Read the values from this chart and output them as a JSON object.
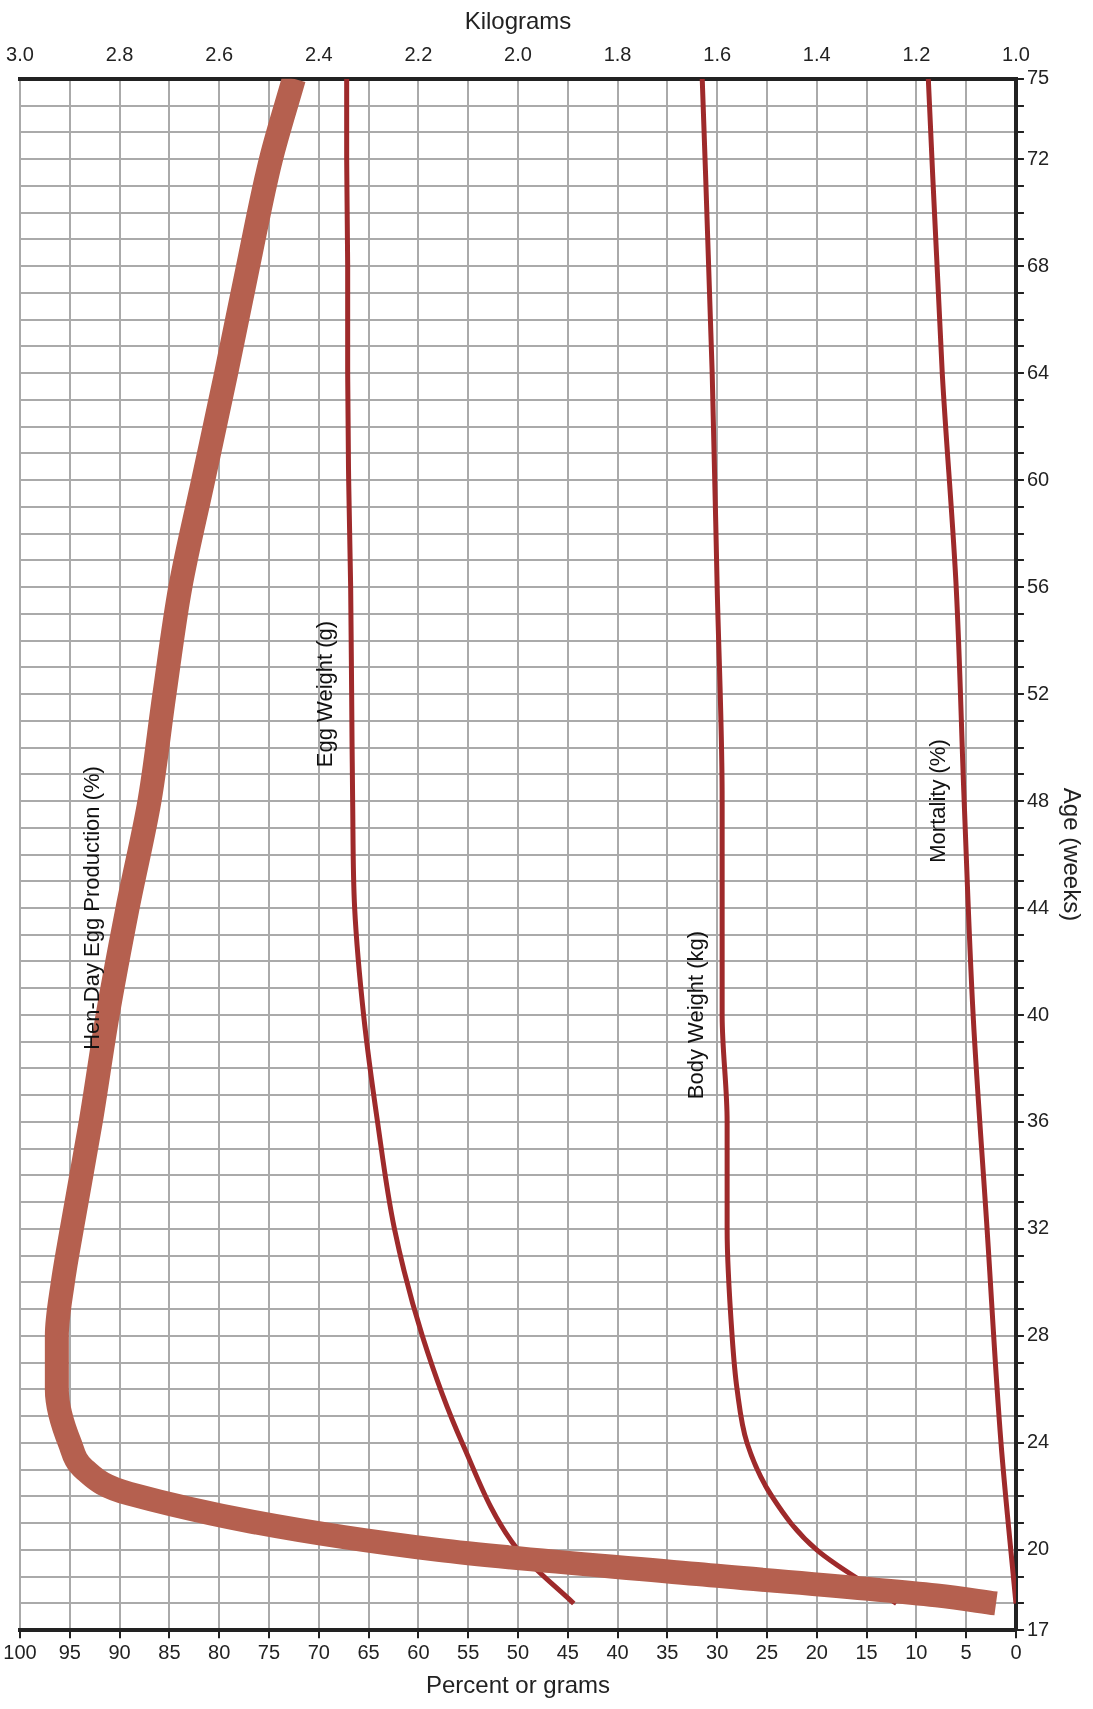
{
  "chart_data": {
    "type": "line",
    "xlabel": "Percent or grams",
    "x2label": "Kilograms",
    "ylabel": "Age (weeks)",
    "series": [
      {
        "name": "Hen-Day Egg Production (%)",
        "color": "#b5604f",
        "x": [
          2,
          8,
          32,
          58,
          89,
          93.5,
          95,
          96.3,
          96.3,
          95.7,
          94.8,
          92.9,
          91.2,
          89.2,
          87,
          85.5,
          83.9,
          81.6,
          79.3,
          77.1,
          74.8,
          72.5
        ],
        "values": [
          18,
          18.3,
          19.1,
          20,
          22.1,
          23,
          24,
          26,
          28,
          30,
          32,
          36,
          40,
          44,
          48,
          52,
          56,
          60,
          64,
          68,
          72,
          75
        ]
      },
      {
        "name": "Egg Weight (g)",
        "color": "#9e2a2b",
        "x": [
          44.4,
          50,
          55.6,
          59.6,
          62.4,
          64.1,
          65.5,
          66.4,
          66.6,
          66.7,
          66.8,
          67,
          67.1,
          67.1,
          67.2,
          67.2
        ],
        "values": [
          18,
          20,
          24,
          28,
          32,
          36,
          40,
          44,
          48,
          52,
          56,
          60,
          64,
          68,
          72,
          75
        ]
      },
      {
        "name": "Body Weight (kg)",
        "color": "#9e2a2b",
        "axis": "x2",
        "x": [
          1.24,
          1.4,
          1.49,
          1.54,
          1.56,
          1.57,
          1.58,
          1.58,
          1.59,
          1.59,
          1.6,
          1.61,
          1.63
        ],
        "values": [
          18,
          20,
          22,
          24,
          26,
          28,
          32,
          36,
          40,
          48,
          56,
          64,
          75
        ]
      },
      {
        "name": "Mortality (%)",
        "color": "#9e2a2b",
        "x": [
          0,
          1.5,
          2.9,
          4.3,
          5.2,
          6,
          7.4,
          8.8
        ],
        "values": [
          18,
          24,
          32,
          40,
          48,
          56,
          64,
          75
        ]
      }
    ],
    "ylim": [
      17,
      75
    ],
    "yticks": [
      17,
      {
        "value": 18,
        "label": null
      },
      {
        "value": 19,
        "label": null
      },
      20,
      {
        "value": 21,
        "label": null
      },
      {
        "value": 22,
        "label": null
      },
      {
        "value": 23,
        "label": null
      },
      24,
      {
        "value": 25,
        "label": null
      },
      {
        "value": 26,
        "label": null
      },
      {
        "value": 27,
        "label": null
      },
      28,
      {
        "value": 29,
        "label": null
      },
      {
        "value": 30,
        "label": null
      },
      {
        "value": 31,
        "label": null
      },
      32,
      {
        "value": 33,
        "label": null
      },
      {
        "value": 34,
        "label": null
      },
      {
        "value": 35,
        "label": null
      },
      36,
      {
        "value": 37,
        "label": null
      },
      {
        "value": 38,
        "label": null
      },
      {
        "value": 39,
        "label": null
      },
      40,
      {
        "value": 41,
        "label": null
      },
      {
        "value": 42,
        "label": null
      },
      {
        "value": 43,
        "label": null
      },
      44,
      {
        "value": 45,
        "label": null
      },
      {
        "value": 46,
        "label": null
      },
      {
        "value": 47,
        "label": null
      },
      48,
      {
        "value": 49,
        "label": null
      },
      {
        "value": 50,
        "label": null
      },
      {
        "value": 51,
        "label": null
      },
      52,
      {
        "value": 53,
        "label": null
      },
      {
        "value": 54,
        "label": null
      },
      {
        "value": 55,
        "label": null
      },
      56,
      {
        "value": 57,
        "label": null
      },
      {
        "value": 58,
        "label": null
      },
      {
        "value": 59,
        "label": null
      },
      60,
      {
        "value": 61,
        "label": null
      },
      {
        "value": 62,
        "label": null
      },
      {
        "value": 63,
        "label": null
      },
      64,
      {
        "value": 65,
        "label": null
      },
      {
        "value": 66,
        "label": null
      },
      {
        "value": 67,
        "label": null
      },
      68,
      {
        "value": 69,
        "label": null
      },
      {
        "value": 70,
        "label": null
      },
      {
        "value": 71,
        "label": null
      },
      72,
      {
        "value": 73,
        "label": null
      },
      {
        "value": 74,
        "label": null
      },
      75
    ],
    "xlim": [
      100,
      0
    ],
    "xticks": [
      100,
      95,
      90,
      85,
      80,
      75,
      70,
      65,
      60,
      55,
      50,
      45,
      40,
      35,
      30,
      25,
      20,
      15,
      10,
      5,
      0
    ],
    "x2lim": [
      3,
      1
    ],
    "x2ticks": [
      {
        "value": 3,
        "label": "3.0"
      },
      {
        "value": 2.8,
        "label": "2.8"
      },
      {
        "value": 2.6,
        "label": "2.6"
      },
      {
        "value": 2.4,
        "label": "2.4"
      },
      {
        "value": 2.2,
        "label": "2.2"
      },
      {
        "value": 2,
        "label": "2.0"
      },
      {
        "value": 1.8,
        "label": "1.8"
      },
      {
        "value": 1.6,
        "label": "1.6"
      },
      {
        "value": 1.4,
        "label": "1.4"
      },
      {
        "value": 1.2,
        "label": "1.2"
      },
      {
        "value": 1,
        "label": "1.0"
      }
    ],
    "grid": true,
    "legend": false,
    "marker": "none",
    "line_style": "solid"
  }
}
